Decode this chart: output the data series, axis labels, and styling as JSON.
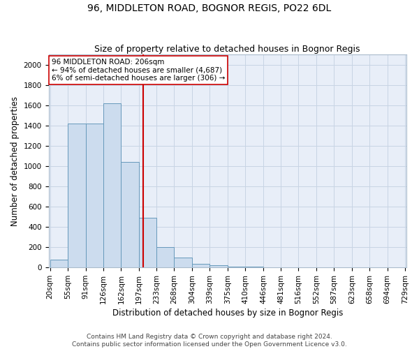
{
  "title": "96, MIDDLETON ROAD, BOGNOR REGIS, PO22 6DL",
  "subtitle": "Size of property relative to detached houses in Bognor Regis",
  "xlabel": "Distribution of detached houses by size in Bognor Regis",
  "ylabel": "Number of detached properties",
  "bin_edges": [
    20,
    55,
    91,
    126,
    162,
    197,
    233,
    268,
    304,
    339,
    375,
    410,
    446,
    481,
    516,
    552,
    587,
    623,
    658,
    694,
    729
  ],
  "bar_heights": [
    80,
    1420,
    1420,
    1620,
    1040,
    490,
    200,
    100,
    35,
    20,
    10,
    5,
    3,
    2,
    1,
    1,
    1,
    0,
    0,
    0
  ],
  "bar_color": "#ccdcee",
  "bar_edge_color": "#6699bb",
  "property_size": 206,
  "vline_color": "#cc0000",
  "annotation_line1": "96 MIDDLETON ROAD: 206sqm",
  "annotation_line2": "← 94% of detached houses are smaller (4,687)",
  "annotation_line3": "6% of semi-detached houses are larger (306) →",
  "annotation_box_color": "#ffffff",
  "annotation_edge_color": "#cc0000",
  "ylim": [
    0,
    2100
  ],
  "yticks": [
    0,
    200,
    400,
    600,
    800,
    1000,
    1200,
    1400,
    1600,
    1800,
    2000
  ],
  "grid_color": "#c8d4e4",
  "background_color": "#e8eef8",
  "footer_text": "Contains HM Land Registry data © Crown copyright and database right 2024.\nContains public sector information licensed under the Open Government Licence v3.0.",
  "title_fontsize": 10,
  "subtitle_fontsize": 9,
  "xlabel_fontsize": 8.5,
  "ylabel_fontsize": 8.5,
  "tick_fontsize": 7.5,
  "annotation_fontsize": 7.5,
  "footer_fontsize": 6.5
}
